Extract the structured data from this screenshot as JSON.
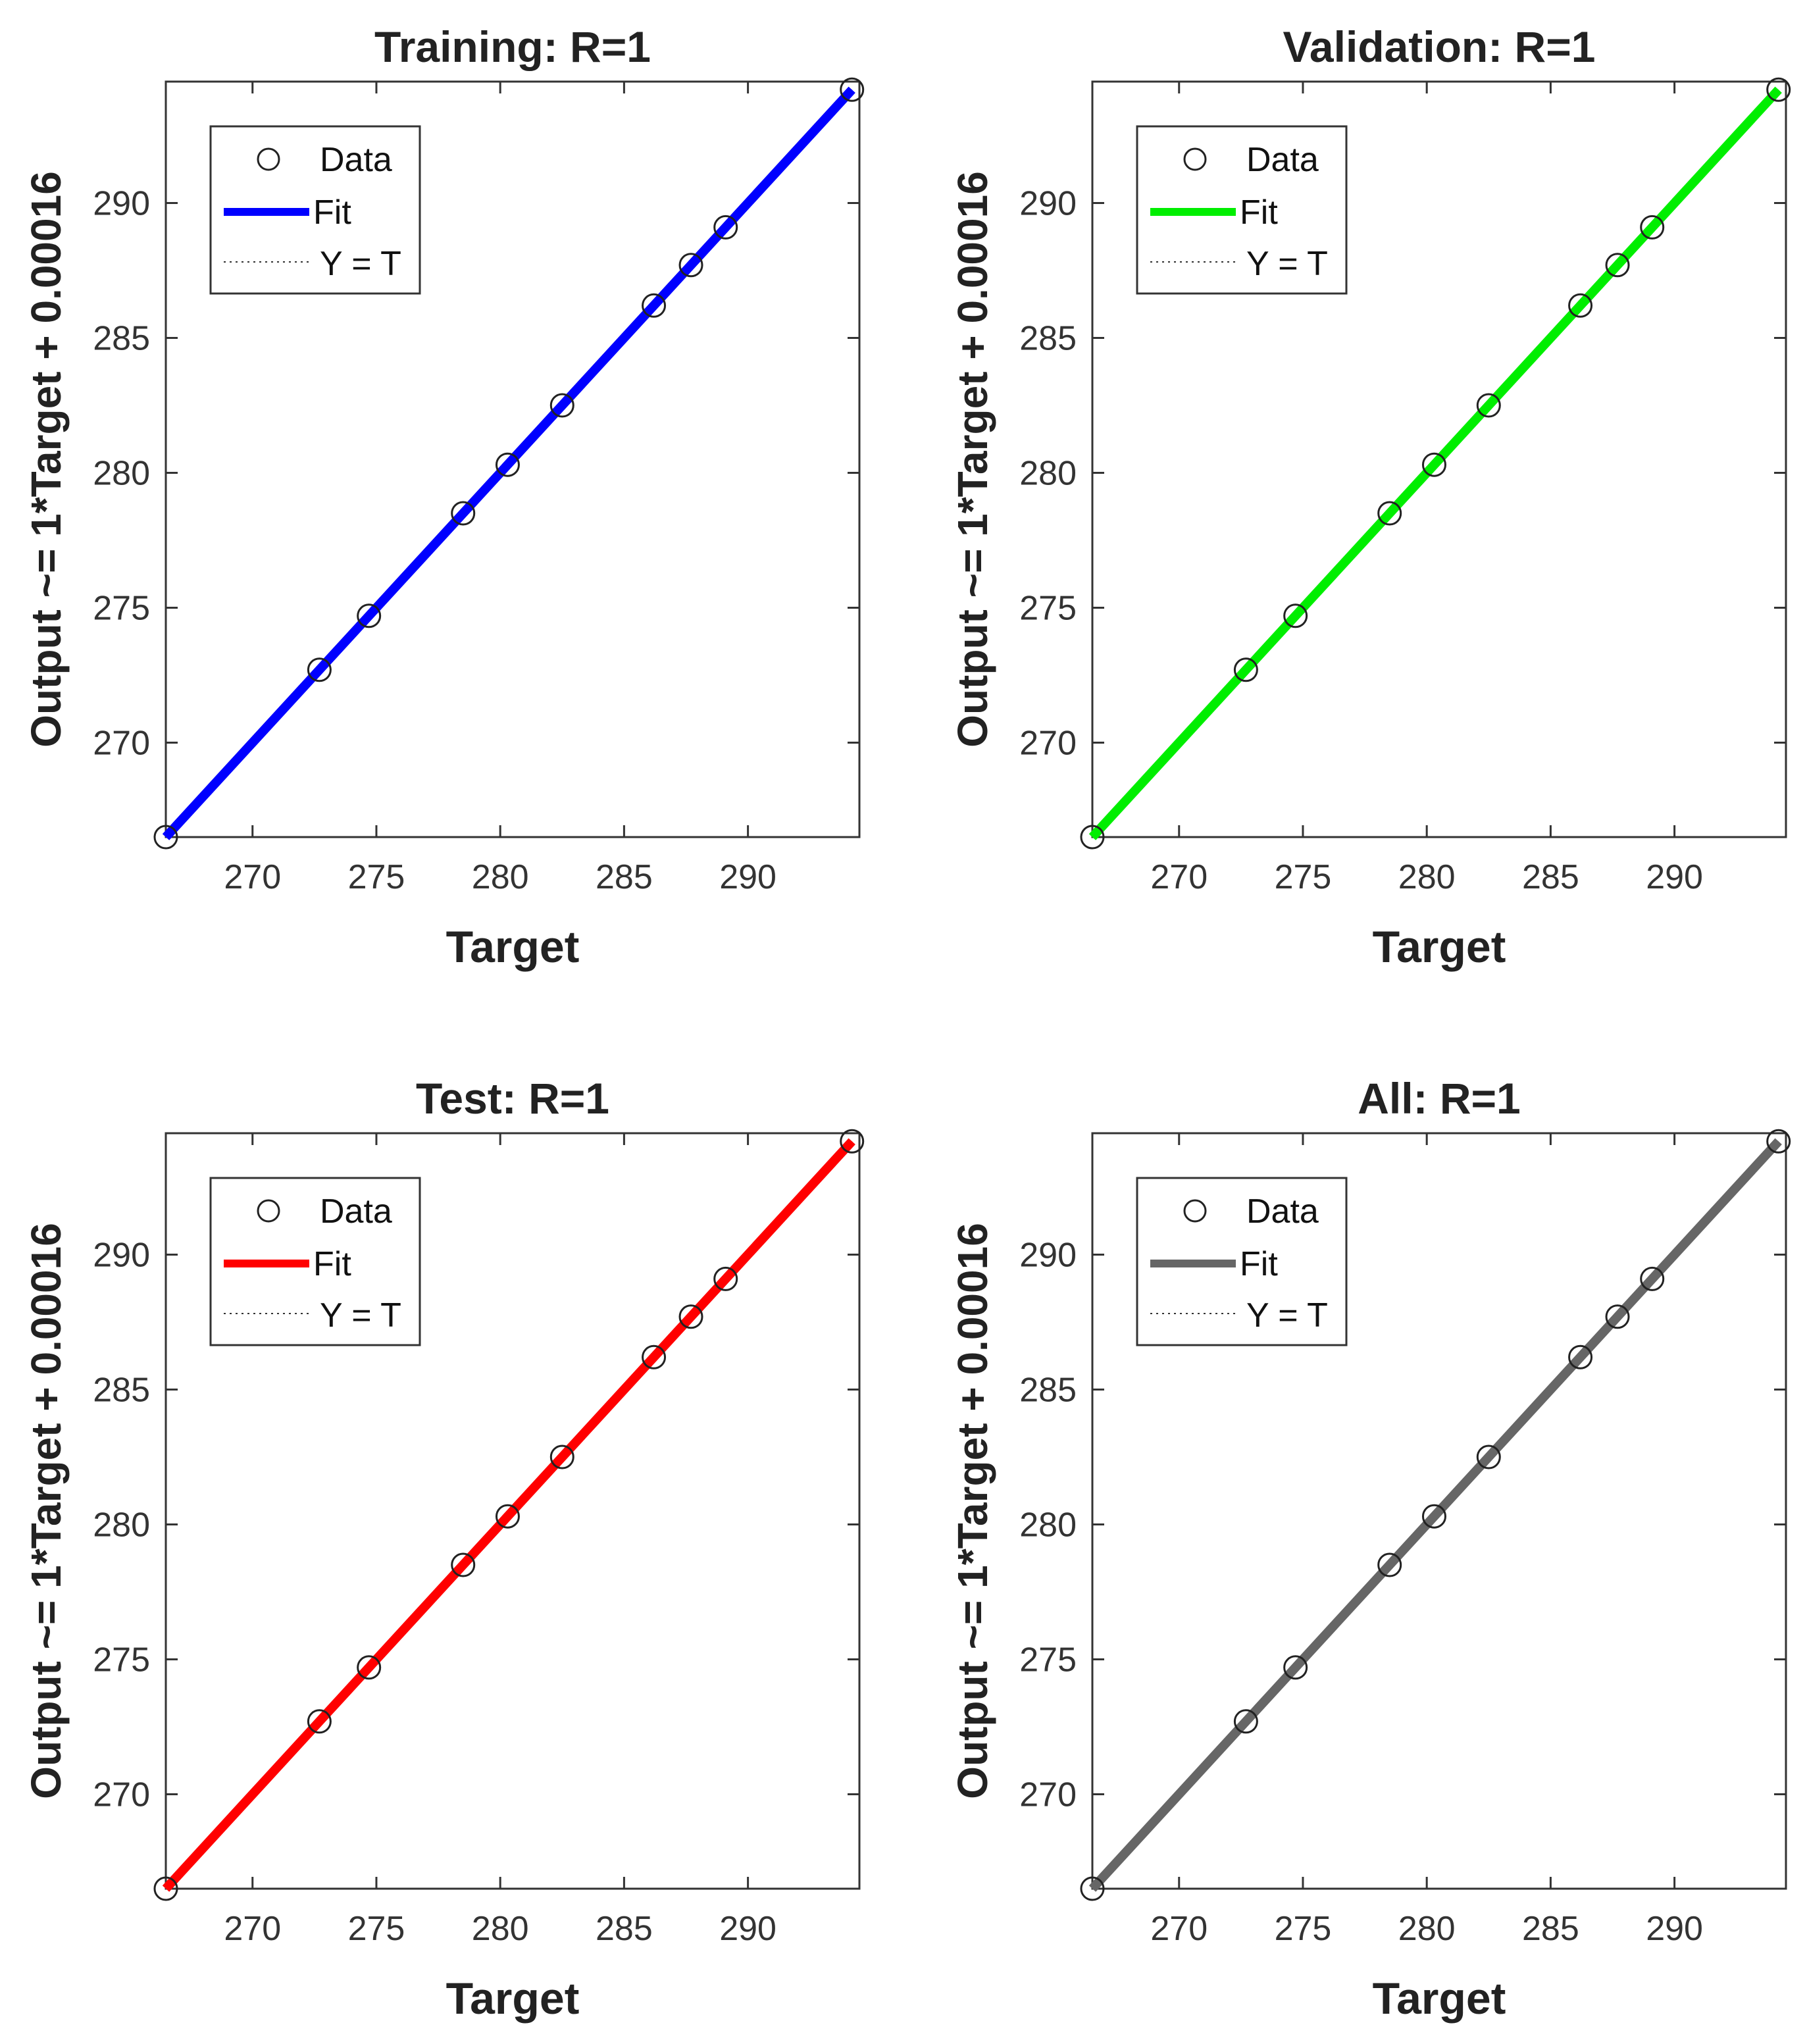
{
  "chart_data": [
    {
      "type": "scatter",
      "title": "Training: R=1",
      "xlabel": "Target",
      "ylabel": "Output ~= 1*Target + 0.00016",
      "xlim": [
        266.5,
        294.5
      ],
      "ylim": [
        266.5,
        294.5
      ],
      "xticks": [
        270,
        275,
        280,
        285,
        290
      ],
      "yticks": [
        270,
        275,
        280,
        285,
        290
      ],
      "fit_color": "#0000ff",
      "legend_position": "top-left",
      "legend": {
        "data": "Data",
        "fit": "Fit",
        "identity": "Y = T"
      },
      "series": [
        {
          "name": "Data",
          "kind": "points",
          "x": [
            266.5,
            272.7,
            274.7,
            278.5,
            280.3,
            282.5,
            286.2,
            287.7,
            289.1,
            294.2
          ],
          "y": [
            266.5,
            272.7,
            274.7,
            278.5,
            280.3,
            282.5,
            286.2,
            287.7,
            289.1,
            294.2
          ]
        },
        {
          "name": "Fit",
          "kind": "line",
          "x": [
            266.5,
            294.2
          ],
          "y": [
            266.5,
            294.2
          ]
        },
        {
          "name": "Y = T",
          "kind": "dotted-line",
          "x": [
            266.5,
            294.2
          ],
          "y": [
            266.5,
            294.2
          ]
        }
      ]
    },
    {
      "type": "scatter",
      "title": "Validation: R=1",
      "xlabel": "Target",
      "ylabel": "Output ~= 1*Target + 0.00016",
      "xlim": [
        266.5,
        294.5
      ],
      "ylim": [
        266.5,
        294.5
      ],
      "xticks": [
        270,
        275,
        280,
        285,
        290
      ],
      "yticks": [
        270,
        275,
        280,
        285,
        290
      ],
      "fit_color": "#00ee00",
      "legend_position": "top-left",
      "legend": {
        "data": "Data",
        "fit": "Fit",
        "identity": "Y = T"
      },
      "series": [
        {
          "name": "Data",
          "kind": "points",
          "x": [
            266.5,
            272.7,
            274.7,
            278.5,
            280.3,
            282.5,
            286.2,
            287.7,
            289.1,
            294.2
          ],
          "y": [
            266.5,
            272.7,
            274.7,
            278.5,
            280.3,
            282.5,
            286.2,
            287.7,
            289.1,
            294.2
          ]
        },
        {
          "name": "Fit",
          "kind": "line",
          "x": [
            266.5,
            294.2
          ],
          "y": [
            266.5,
            294.2
          ]
        },
        {
          "name": "Y = T",
          "kind": "dotted-line",
          "x": [
            266.5,
            294.2
          ],
          "y": [
            266.5,
            294.2
          ]
        }
      ]
    },
    {
      "type": "scatter",
      "title": "Test: R=1",
      "xlabel": "Target",
      "ylabel": "Output ~= 1*Target + 0.00016",
      "xlim": [
        266.5,
        294.5
      ],
      "ylim": [
        266.5,
        294.5
      ],
      "xticks": [
        270,
        275,
        280,
        285,
        290
      ],
      "yticks": [
        270,
        275,
        280,
        285,
        290
      ],
      "fit_color": "#ff0000",
      "legend_position": "top-left",
      "legend": {
        "data": "Data",
        "fit": "Fit",
        "identity": "Y = T"
      },
      "series": [
        {
          "name": "Data",
          "kind": "points",
          "x": [
            266.5,
            272.7,
            274.7,
            278.5,
            280.3,
            282.5,
            286.2,
            287.7,
            289.1,
            294.2
          ],
          "y": [
            266.5,
            272.7,
            274.7,
            278.5,
            280.3,
            282.5,
            286.2,
            287.7,
            289.1,
            294.2
          ]
        },
        {
          "name": "Fit",
          "kind": "line",
          "x": [
            266.5,
            294.2
          ],
          "y": [
            266.5,
            294.2
          ]
        },
        {
          "name": "Y = T",
          "kind": "dotted-line",
          "x": [
            266.5,
            294.2
          ],
          "y": [
            266.5,
            294.2
          ]
        }
      ]
    },
    {
      "type": "scatter",
      "title": "All: R=1",
      "xlabel": "Target",
      "ylabel": "Output ~= 1*Target + 0.00016",
      "xlim": [
        266.5,
        294.5
      ],
      "ylim": [
        266.5,
        294.5
      ],
      "xticks": [
        270,
        275,
        280,
        285,
        290
      ],
      "yticks": [
        270,
        275,
        280,
        285,
        290
      ],
      "fit_color": "#666666",
      "legend_position": "top-left",
      "legend": {
        "data": "Data",
        "fit": "Fit",
        "identity": "Y = T"
      },
      "series": [
        {
          "name": "Data",
          "kind": "points",
          "x": [
            266.5,
            272.7,
            274.7,
            278.5,
            280.3,
            282.5,
            286.2,
            287.7,
            289.1,
            294.2
          ],
          "y": [
            266.5,
            272.7,
            274.7,
            278.5,
            280.3,
            282.5,
            286.2,
            287.7,
            289.1,
            294.2
          ]
        },
        {
          "name": "Fit",
          "kind": "line",
          "x": [
            266.5,
            294.2
          ],
          "y": [
            266.5,
            294.2
          ]
        },
        {
          "name": "Y = T",
          "kind": "dotted-line",
          "x": [
            266.5,
            294.2
          ],
          "y": [
            266.5,
            294.2
          ]
        }
      ]
    }
  ]
}
